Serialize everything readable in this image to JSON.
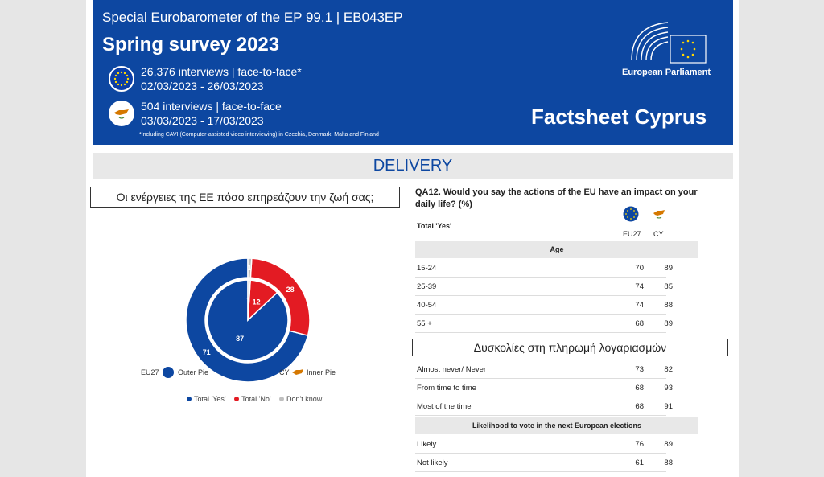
{
  "banner": {
    "subtitle": "Special Eurobarometer of the EP 99.1 | EB043EP",
    "title": "Spring survey 2023",
    "eu_line1": "26,376 interviews | face-to-face*",
    "eu_line2": "02/03/2023 - 26/03/2023",
    "cy_line1": "504 interviews | face-to-face",
    "cy_line2": "03/03/2023 - 17/03/2023",
    "note": "*Including CAVI (Computer-assisted video interviewing) in Czechia, Denmark, Malta and Finland",
    "factsheet": "Factsheet Cyprus",
    "ep_label": "European Parliament"
  },
  "section": "DELIVERY",
  "greek_overlay_1": "Οι ενέργειες της ΕΕ πόσο επηρεάζουν την ζωή σας;",
  "greek_overlay_2": "Δυσκολίες στη πληρωμή λογαριασμών",
  "question": "QA12. Would you say the actions of the EU have an impact on your daily life? (%)",
  "table": {
    "total_label": "Total 'Yes'",
    "col1": "EU27",
    "col2": "CY",
    "age_header": "Age",
    "age_rows": [
      {
        "label": "15-24",
        "eu": "70",
        "cy": "89"
      },
      {
        "label": "25-39",
        "eu": "74",
        "cy": "85"
      },
      {
        "label": "40-54",
        "eu": "74",
        "cy": "88"
      },
      {
        "label": "55 +",
        "eu": "68",
        "cy": "89"
      }
    ],
    "bills_rows": [
      {
        "label": "Almost never/ Never",
        "eu": "73",
        "cy": "82"
      },
      {
        "label": "From time to time",
        "eu": "68",
        "cy": "93"
      },
      {
        "label": "Most of the time",
        "eu": "68",
        "cy": "91"
      }
    ],
    "vote_header": "Likelihood to vote in the next European elections",
    "vote_rows": [
      {
        "label": "Likely",
        "eu": "76",
        "cy": "89"
      },
      {
        "label": "Not likely",
        "eu": "61",
        "cy": "88"
      }
    ]
  },
  "chart_data": {
    "type": "pie",
    "outer": {
      "name": "EU27",
      "values": [
        71,
        28,
        1
      ]
    },
    "inner": {
      "name": "CY",
      "values": [
        87,
        12,
        1
      ]
    },
    "categories": [
      "Total 'Yes'",
      "Total 'No'",
      "Don't know"
    ],
    "colors": [
      "#0d47a1",
      "#e31b23",
      "#bfbfbf"
    ],
    "outer_caption": "Outer Pie",
    "inner_caption": "Inner Pie",
    "eu_label": "EU27",
    "cy_label": "CY"
  }
}
